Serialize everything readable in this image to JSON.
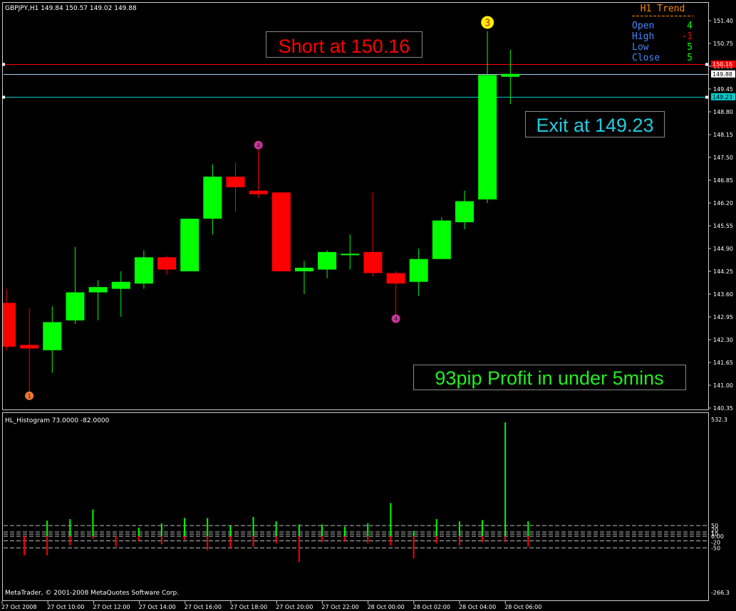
{
  "header": {
    "symbol_line": "GBPJPY,H1  149.84 150.57 149.02 149.88"
  },
  "trend_box": {
    "title": "H1 Trend",
    "rows": [
      {
        "label": "Open",
        "value": "4",
        "value_color": "#00ff00"
      },
      {
        "label": "High",
        "value": "-1",
        "value_color": "#ff0000"
      },
      {
        "label": "Low",
        "value": "5",
        "value_color": "#00ff00"
      },
      {
        "label": "Close",
        "value": "5",
        "value_color": "#00ff00"
      }
    ]
  },
  "annotations": {
    "short": "Short at 150.16",
    "exit": "Exit at 149.23",
    "profit": "93pip Profit in under 5mins"
  },
  "price_tags": {
    "short_level": "150.16",
    "current": "149.88",
    "exit_level": "149.23"
  },
  "indicator": {
    "title": "HL_Histogram 73.0000 -82.0000",
    "copyright": "MetaTrader, © 2001-2008 MetaQuotes Software Corp."
  },
  "colors": {
    "bull": "#00ff00",
    "bear": "#ff0000",
    "short_line": "#ff0000",
    "exit_line": "#00cccc",
    "current_line": "#aaccee",
    "short_text": "#ff0000",
    "exit_text": "#22ccdd",
    "profit_text": "#22ee22",
    "trend_title": "#ff8800",
    "trend_label": "#4488ff"
  },
  "chart_data": [
    {
      "type": "candlestick",
      "title": "GBPJPY,H1",
      "price_axis_ticks": [
        "151.40",
        "150.75",
        "150.10",
        "149.45",
        "148.80",
        "148.15",
        "147.50",
        "146.85",
        "146.20",
        "145.55",
        "144.90",
        "144.25",
        "143.60",
        "142.95",
        "142.30",
        "141.65",
        "141.00",
        "140.35"
      ],
      "ylim": [
        140.28,
        151.58
      ],
      "x_tick_labels": [
        "27 Oct 2008",
        "27 Oct 10:00",
        "27 Oct 12:00",
        "27 Oct 14:00",
        "27 Oct 16:00",
        "27 Oct 18:00",
        "27 Oct 20:00",
        "27 Oct 22:00",
        "28 Oct 00:00",
        "28 Oct 02:00",
        "28 Oct 04:00",
        "28 Oct 06:00"
      ],
      "candles": [
        {
          "open": 143.35,
          "high": 143.75,
          "low": 142.0,
          "close": 142.1
        },
        {
          "open": 142.15,
          "high": 143.2,
          "low": 140.6,
          "close": 142.05
        },
        {
          "open": 142.0,
          "high": 143.25,
          "low": 141.35,
          "close": 142.8
        },
        {
          "open": 142.85,
          "high": 144.95,
          "low": 142.75,
          "close": 143.65
        },
        {
          "open": 143.65,
          "high": 144.0,
          "low": 142.85,
          "close": 143.8
        },
        {
          "open": 143.75,
          "high": 144.25,
          "low": 142.95,
          "close": 143.95
        },
        {
          "open": 143.9,
          "high": 144.85,
          "low": 143.75,
          "close": 144.65
        },
        {
          "open": 144.65,
          "high": 144.7,
          "low": 144.15,
          "close": 144.3
        },
        {
          "open": 144.25,
          "high": 145.7,
          "low": 144.25,
          "close": 145.75
        },
        {
          "open": 145.75,
          "high": 147.3,
          "low": 145.3,
          "close": 146.95
        },
        {
          "open": 146.95,
          "high": 147.35,
          "low": 145.95,
          "close": 146.65
        },
        {
          "open": 146.55,
          "high": 147.75,
          "low": 146.35,
          "close": 146.45
        },
        {
          "open": 146.5,
          "high": 146.5,
          "low": 144.25,
          "close": 144.25
        },
        {
          "open": 144.25,
          "high": 144.55,
          "low": 143.6,
          "close": 144.35
        },
        {
          "open": 144.3,
          "high": 144.85,
          "low": 144.05,
          "close": 144.8
        },
        {
          "open": 144.75,
          "high": 145.3,
          "low": 144.3,
          "close": 144.75
        },
        {
          "open": 144.8,
          "high": 146.5,
          "low": 144.1,
          "close": 144.2
        },
        {
          "open": 144.2,
          "high": 144.25,
          "low": 143.0,
          "close": 143.9
        },
        {
          "open": 143.95,
          "high": 144.9,
          "low": 143.55,
          "close": 144.6
        },
        {
          "open": 144.6,
          "high": 145.8,
          "low": 144.6,
          "close": 145.7
        },
        {
          "open": 145.65,
          "high": 146.55,
          "low": 145.45,
          "close": 146.25
        },
        {
          "open": 146.3,
          "high": 151.1,
          "low": 146.2,
          "close": 149.85
        },
        {
          "open": 149.8,
          "high": 150.57,
          "low": 149.02,
          "close": 149.88
        }
      ],
      "markers": [
        {
          "candle": 1,
          "price": 140.7,
          "label": "1",
          "color": "#ee7733"
        },
        {
          "candle": 11,
          "price": 147.85,
          "label": "4",
          "color": "#cc3399"
        },
        {
          "candle": 17,
          "price": 142.9,
          "label": "4",
          "color": "#cc3399"
        },
        {
          "candle": 21,
          "price": 151.35,
          "label": "3",
          "color": "#ffee00"
        }
      ],
      "levels": [
        {
          "name": "short",
          "price": 150.16
        },
        {
          "name": "current",
          "price": 149.88
        },
        {
          "name": "exit",
          "price": 149.23
        }
      ]
    },
    {
      "type": "bar",
      "title": "HL_Histogram 73.0000 -82.0000",
      "y_tick_labels": [
        "532.3",
        "50",
        "20",
        "10",
        "0.00",
        "-20",
        "-50",
        "-266.3"
      ],
      "ylim": [
        -266.3,
        532.3
      ],
      "values": [
        [
          null,
          -82
        ],
        [
          73,
          -82
        ],
        [
          80,
          -40
        ],
        [
          125,
          -10
        ],
        [
          null,
          -45
        ],
        [
          40,
          -20
        ],
        [
          60,
          -35
        ],
        [
          85,
          -15
        ],
        [
          85,
          -60
        ],
        [
          50,
          -50
        ],
        [
          90,
          -45
        ],
        [
          70,
          -30
        ],
        [
          55,
          -110
        ],
        [
          55,
          -25
        ],
        [
          45,
          -20
        ],
        [
          60,
          -30
        ],
        [
          155,
          -40
        ],
        [
          25,
          -95
        ],
        [
          80,
          -30
        ],
        [
          70,
          -40
        ],
        [
          75,
          -25
        ],
        [
          532,
          -25
        ],
        [
          70,
          -45
        ]
      ],
      "dashed_levels": [
        50,
        20,
        10,
        0,
        -20,
        -50
      ]
    }
  ]
}
